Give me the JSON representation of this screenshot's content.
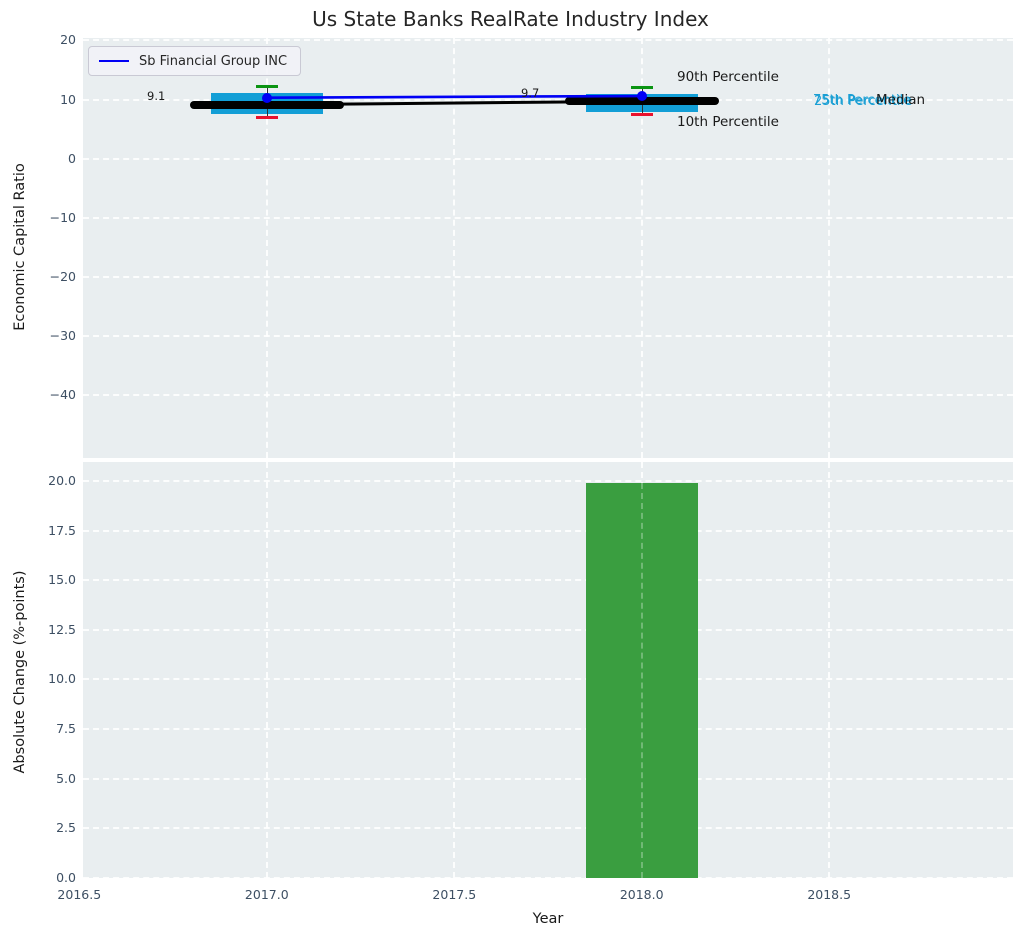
{
  "chart_data": [
    {
      "type": "boxplot+line",
      "title": "Us State Banks RealRate Industry Index",
      "ylabel": "Economic Capital Ratio",
      "xlim": [
        2016.51,
        2018.99
      ],
      "ylim": [
        -50.6,
        20.4
      ],
      "yticks": [
        20,
        10,
        0,
        -10,
        -20,
        -30,
        -40
      ],
      "ytick_labels": [
        "20",
        "10",
        "0",
        "−10",
        "−20",
        "−30",
        "−40"
      ],
      "xticks": [
        2016.5,
        2017.0,
        2017.5,
        2018.0,
        2018.5
      ],
      "grid": "white dashed, on",
      "legend": {
        "label": "Sb Financial Group INC",
        "position": "upper left",
        "color": "#0000f5"
      },
      "series": [
        {
          "name": "Sb Financial Group INC",
          "x": [
            2017,
            2018
          ],
          "y": [
            10.3,
            10.6
          ],
          "color": "#0000f5",
          "marker": "circle"
        },
        {
          "name": "Median",
          "x": [
            2017,
            2018
          ],
          "y": [
            9.1,
            9.7
          ],
          "color": "#000000"
        }
      ],
      "boxes": [
        {
          "x": 2017,
          "p90": 12.2,
          "p75": 11.1,
          "median": 9.1,
          "p25": 7.6,
          "p10": 6.9,
          "label": "9.1"
        },
        {
          "x": 2018,
          "p90": 12.1,
          "p75": 11.0,
          "median": 9.7,
          "p25": 7.8,
          "p10": 7.4,
          "label": "9.7"
        }
      ],
      "box_width_years": 0.3,
      "median_bar_width_years": 0.41,
      "colors": {
        "box": "#129ed6",
        "cap_top": "#0a9412",
        "cap_bottom": "#e8112d",
        "median": "#000000",
        "company_line": "#0000f5"
      },
      "annotations": {
        "p90": "90th Percentile",
        "p10": "10th Percentile",
        "p75": "75th Percentile",
        "p25": "25th Percentile",
        "median": "Median"
      }
    },
    {
      "type": "bar",
      "ylabel": "Absolute Change (%-points)",
      "xlabel": "Year",
      "xlim": [
        2016.51,
        2018.99
      ],
      "ylim": [
        0,
        20.95
      ],
      "yticks": [
        20.0,
        17.5,
        15.0,
        12.5,
        10.0,
        7.5,
        5.0,
        2.5,
        0.0
      ],
      "ytick_labels": [
        "20.0",
        "17.5",
        "15.0",
        "12.5",
        "10.0",
        "7.5",
        "5.0",
        "2.5",
        "0.0"
      ],
      "xticks": [
        2016.5,
        2017.0,
        2017.5,
        2018.0,
        2018.5
      ],
      "xtick_labels": [
        "2016.5",
        "2017.0",
        "2017.5",
        "2018.0",
        "2018.5"
      ],
      "bars": [
        {
          "x": 2018,
          "value": 19.9,
          "width": 0.3
        }
      ],
      "bar_color": "#3a9e40"
    }
  ]
}
